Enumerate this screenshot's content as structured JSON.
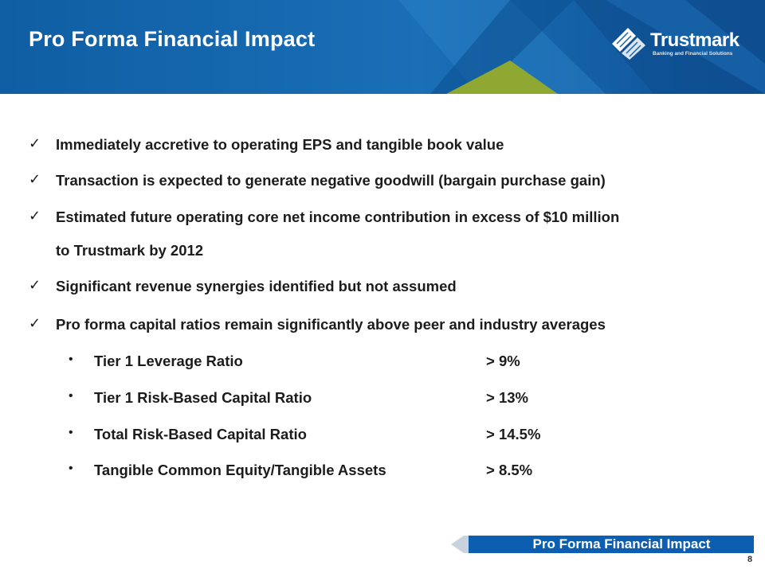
{
  "slide": {
    "title": "Pro Forma Financial Impact",
    "logo": {
      "name": "Trustmark",
      "tagline": "Banking and Financial Solutions"
    },
    "check_bullets": [
      {
        "text": "Immediately accretive to operating EPS and tangible book value"
      },
      {
        "text": "Transaction is expected to generate negative goodwill (bargain purchase gain)"
      },
      {
        "text": "Estimated future operating core net income contribution in excess of $10 million",
        "continuation": "to Trustmark by 2012"
      },
      {
        "text": "Significant revenue synergies identified but not assumed"
      },
      {
        "text": "Pro forma capital ratios remain significantly above peer and industry averages"
      }
    ],
    "sub_bullets": [
      {
        "label": "Tier 1 Leverage Ratio",
        "value": "> 9%"
      },
      {
        "label": "Tier 1 Risk-Based Capital Ratio",
        "value": "> 13%"
      },
      {
        "label": "Total Risk-Based Capital Ratio",
        "value": "> 14.5%"
      },
      {
        "label": "Tangible Common Equity/Tangible Assets",
        "value": "> 8.5%"
      }
    ],
    "footer_label": "Pro Forma Financial Impact",
    "page_number": "8",
    "colors": {
      "header_blue": "#1565a8",
      "header_dark": "#0a4d8c",
      "accent_green": "#8fa832",
      "footer_blue": "#0c5fb0"
    }
  }
}
